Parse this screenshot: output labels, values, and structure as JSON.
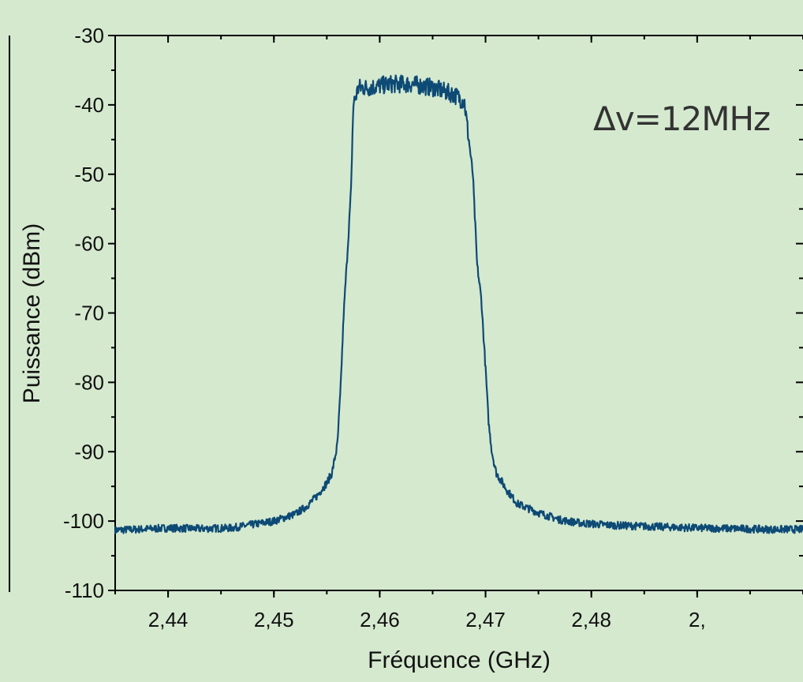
{
  "chart_data": {
    "type": "line",
    "title": "",
    "xlabel": "Fréquence (GHz)",
    "ylabel": "Puissance (dBm)",
    "xlim": [
      2.435,
      2.5
    ],
    "ylim": [
      -110,
      -30
    ],
    "x_ticks": [
      2.44,
      2.45,
      2.46,
      2.47,
      2.48,
      2.49
    ],
    "x_tick_labels": [
      "2,44",
      "2,45",
      "2,46",
      "2,47",
      "2,48",
      "2,"
    ],
    "y_ticks": [
      -110,
      -100,
      -90,
      -80,
      -70,
      -60,
      -50,
      -40,
      -30
    ],
    "y_tick_labels": [
      "-110",
      "-100",
      "-90",
      "-80",
      "-70",
      "-60",
      "-50",
      "-40",
      "-30"
    ],
    "annotation": "Δv=12MHz",
    "grid": false,
    "legend": "none",
    "series": [
      {
        "color": "#0d4a75",
        "x": [
          2.435,
          2.437,
          2.44,
          2.443,
          2.446,
          2.448,
          2.45,
          2.452,
          2.453,
          2.454,
          2.455,
          2.4555,
          2.456,
          2.4563,
          2.4566,
          2.457,
          2.4573,
          2.4575,
          2.458,
          2.459,
          2.461,
          2.463,
          2.465,
          2.467,
          2.468,
          2.4688,
          2.4692,
          2.4696,
          2.47,
          2.4703,
          2.4706,
          2.471,
          2.472,
          2.473,
          2.475,
          2.477,
          2.479,
          2.482,
          2.486,
          2.49,
          2.494,
          2.497,
          2.5
        ],
        "y": [
          -101.3,
          -101.2,
          -101.0,
          -101.1,
          -101.0,
          -100.5,
          -100.0,
          -99.0,
          -98.0,
          -96.5,
          -94.5,
          -93.0,
          -89.0,
          -81.0,
          -70.0,
          -60.0,
          -52.0,
          -40.0,
          -37.5,
          -37.5,
          -37.0,
          -37.0,
          -37.5,
          -38.5,
          -39.5,
          -50.0,
          -63.0,
          -68.0,
          -78.0,
          -86.0,
          -90.0,
          -93.0,
          -95.5,
          -97.5,
          -98.8,
          -99.8,
          -100.3,
          -100.6,
          -100.8,
          -101.0,
          -101.1,
          -101.2,
          -101.2
        ]
      }
    ]
  }
}
